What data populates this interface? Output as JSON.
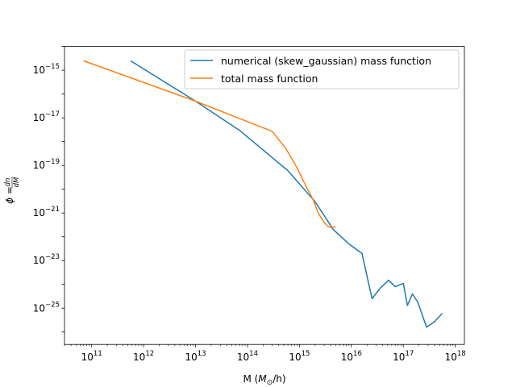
{
  "chart_data": {
    "type": "line",
    "title": "",
    "xlabel": "M ($M_\\odot$/h)",
    "ylabel": "$\\phi = \\frac{dn}{dM}$",
    "xscale": "log",
    "yscale": "log",
    "xlim": [
      30000000000.0,
      1.5e+18
    ],
    "ylim": [
      3e-27,
      1e-14
    ],
    "grid": false,
    "legend_position": "top-right",
    "x_tick_labels": [
      "10^11",
      "10^12",
      "10^13",
      "10^14",
      "10^15",
      "10^16",
      "10^17",
      "10^18"
    ],
    "y_tick_labels": [
      "10^-25",
      "10^-23",
      "10^-21",
      "10^-19",
      "10^-17",
      "10^-15"
    ],
    "series": [
      {
        "name": "numerical (skew_gaussian) mass function",
        "color": "#1f77b4",
        "x": [
          560000000000.0,
          10000000000000.0,
          70000000000000.0,
          600000000000000.0,
          2000000000000000.0,
          4500000000000000.0,
          9000000000000000.0,
          1.6e+16,
          2.5e+16,
          3.6e+16,
          5.2e+16,
          7e+16,
          1e+17,
          1.2e+17,
          1.5e+17,
          1.9e+17,
          2.8e+17,
          4e+17,
          5.6e+17
        ],
        "y": [
          2.5e-15,
          5e-17,
          3e-18,
          6e-20,
          3e-21,
          2e-22,
          5e-23,
          2e-23,
          2.5e-25,
          7e-25,
          1.5e-24,
          8e-25,
          1.1e-24,
          1.3e-25,
          4e-25,
          1.8e-25,
          1.6e-26,
          2.7e-26,
          6e-26
        ]
      },
      {
        "name": "total mass function",
        "color": "#ff7f0e",
        "x": [
          70000000000.0,
          10000000000000.0,
          300000000000000.0,
          550000000000000.0,
          900000000000000.0,
          1300000000000000.0,
          1800000000000000.0,
          2300000000000000.0,
          3000000000000000.0,
          3600000000000000.0,
          4100000000000000.0,
          5000000000000000.0
        ],
        "y": [
          2.5e-15,
          5e-17,
          2.7e-18,
          5e-19,
          8e-20,
          1.5e-20,
          4e-21,
          1e-21,
          4e-22,
          2.7e-22,
          2.5e-22,
          2.6e-22
        ]
      }
    ]
  }
}
